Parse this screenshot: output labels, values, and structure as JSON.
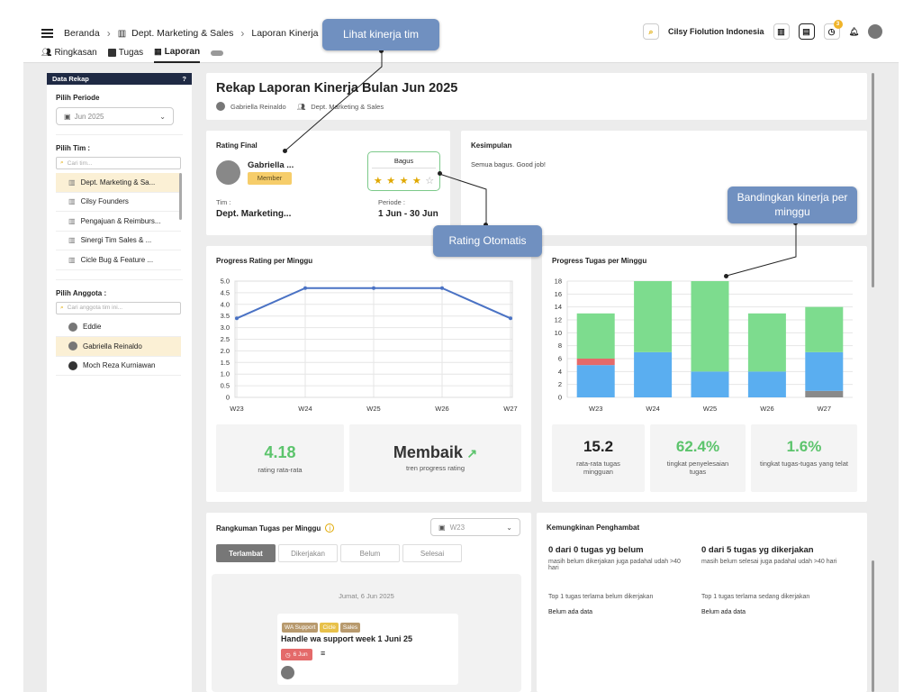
{
  "breadcrumb": {
    "home": "Beranda",
    "dept": "Dept. Marketing & Sales",
    "current": "Laporan Kinerja"
  },
  "header": {
    "company": "Cilsy Fiolution Indonesia",
    "notif_count": "3"
  },
  "tabs": [
    {
      "label": "Ringkasan"
    },
    {
      "label": "Tugas"
    },
    {
      "label": "Laporan"
    }
  ],
  "sidebar": {
    "title": "Data Rekap",
    "period_label": "Pilih Periode",
    "period_value": "Jun 2025",
    "team_label": "Pilih Tim :",
    "team_search_placeholder": "Cari tim...",
    "teams": [
      {
        "label": "Dept. Marketing & Sa..."
      },
      {
        "label": "Cilsy Founders"
      },
      {
        "label": "Pengajuan & Reimburs..."
      },
      {
        "label": "Sinergi Tim Sales & ..."
      },
      {
        "label": "Cicle Bug & Feature ..."
      }
    ],
    "member_label": "Pilih Anggota :",
    "member_search_placeholder": "Cari anggota tim ini...",
    "members": [
      {
        "label": "Eddie"
      },
      {
        "label": "Gabriella Reinaldo"
      },
      {
        "label": "Moch Reza Kurniawan"
      }
    ]
  },
  "report": {
    "title": "Rekap Laporan Kinerja Bulan Jun 2025",
    "person": "Gabriella Reinaldo",
    "dept": "Dept. Marketing & Sales"
  },
  "rating": {
    "title": "Rating Final",
    "name": "Gabriella ...",
    "role": "Member",
    "badge": "Bagus",
    "stars": 4,
    "team_label": "Tim :",
    "team_value": "Dept. Marketing...",
    "period_label": "Periode :",
    "period_value": "1 Jun - 30 Jun"
  },
  "conclusion": {
    "title": "Kesimpulan",
    "text": "Semua bagus. Good job!"
  },
  "callouts": {
    "team": "Lihat kinerja tim",
    "auto": "Rating Otomatis",
    "compare": "Bandingkan kinerja per minggu"
  },
  "progress_rating": {
    "title": "Progress Rating per Minggu",
    "avg_value": "4.18",
    "avg_label": "rating rata-rata",
    "trend_value": "Membaik",
    "trend_label": "tren progress rating"
  },
  "progress_tasks": {
    "title": "Progress Tugas per Minggu",
    "avg_value": "15.2",
    "avg_label": "rata-rata tugas mingguan",
    "completion_value": "62.4%",
    "completion_label": "tingkat penyelesaian tugas",
    "late_value": "1.6%",
    "late_label": "tingkat tugas-tugas yang telat"
  },
  "chart_data": [
    {
      "type": "line",
      "categories": [
        "W23",
        "W24",
        "W25",
        "W26",
        "W27"
      ],
      "values": [
        3.4,
        4.7,
        4.7,
        4.7,
        3.4
      ],
      "ylim": [
        0,
        5
      ],
      "yticks": [
        "0",
        "0.5",
        "1.0",
        "1.5",
        "2.0",
        "2.5",
        "3.0",
        "3.5",
        "4.0",
        "4.5",
        "5.0"
      ],
      "grid": true,
      "color": "#4a72c4"
    },
    {
      "type": "bar",
      "stacked": true,
      "categories": [
        "W23",
        "W24",
        "W25",
        "W26",
        "W27"
      ],
      "ylim": [
        0,
        18
      ],
      "yticks": [
        "0",
        "2",
        "4",
        "6",
        "8",
        "10",
        "12",
        "14",
        "16",
        "18"
      ],
      "grid": true,
      "series": [
        {
          "color": "#8a8a8a",
          "values": [
            0,
            0,
            0,
            0,
            1
          ]
        },
        {
          "color": "#5aaef0",
          "values": [
            5,
            7,
            4,
            4,
            6
          ]
        },
        {
          "color": "#e46a6a",
          "values": [
            1,
            0,
            0,
            0,
            0
          ]
        },
        {
          "color": "#7ddc8e",
          "values": [
            7,
            11,
            14,
            9,
            7
          ]
        }
      ]
    }
  ],
  "summary": {
    "title": "Rangkuman Tugas per Minggu",
    "week_select": "W23",
    "filters": [
      {
        "label": "Terlambat"
      },
      {
        "label": "Dikerjakan"
      },
      {
        "label": "Belum"
      },
      {
        "label": "Selesai"
      }
    ],
    "date": "Jumat, 6 Jun 2025",
    "task": {
      "tags": [
        {
          "label": "WA Support",
          "color": "#b89a6e"
        },
        {
          "label": "Cicle",
          "color": "#e8c14a"
        },
        {
          "label": "Sales",
          "color": "#b89a6e"
        }
      ],
      "title": "Handle wa support week 1 Juni 25",
      "due": "6 Jun"
    }
  },
  "blockers": {
    "title": "Kemungkinan Penghambat",
    "left_head": "0 dari 0 tugas yg belum",
    "left_desc": "masih belum dikerjakan juga padahal udah >40 hari",
    "left_top": "Top 1 tugas terlama belum dikerjakan",
    "left_none": "Belum ada data",
    "right_head": "0 dari 5 tugas yg dikerjakan",
    "right_desc": "masih belum selesai juga padahal udah >40 hari",
    "right_top": "Top 1 tugas terlama sedang dikerjakan",
    "right_none": "Belum ada data"
  }
}
